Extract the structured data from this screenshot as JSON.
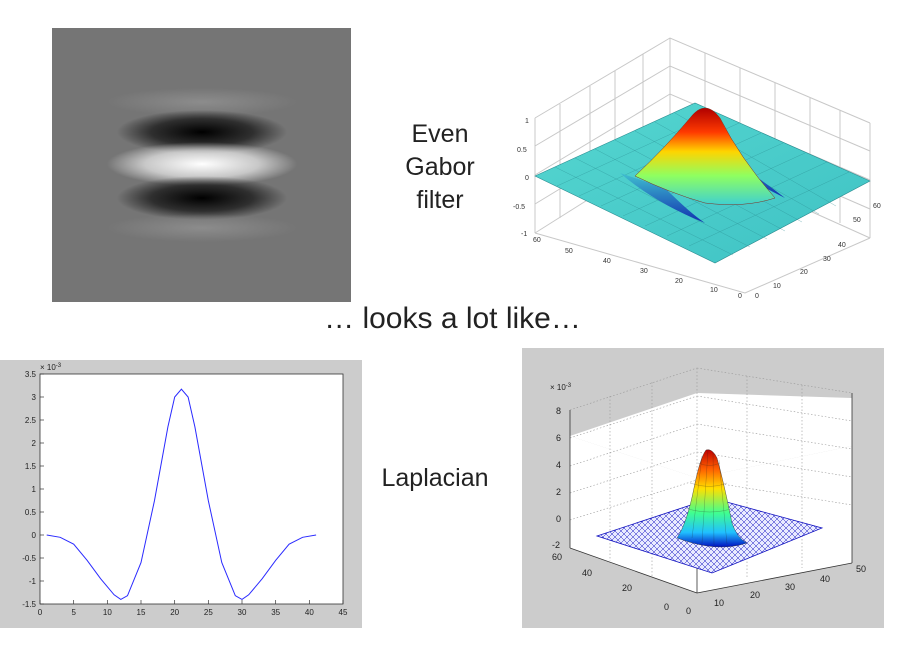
{
  "labels": {
    "gabor": [
      "Even",
      "Gabor",
      "filter"
    ],
    "caption": "… looks a lot like…",
    "laplacian": "Laplacian"
  },
  "chart_data": [
    {
      "type": "heatmap",
      "description_hidden": true,
      "colormap": "gray",
      "bands": [
        {
          "y": 0.26,
          "value": 0.55
        },
        {
          "y": 0.37,
          "value": 0.0
        },
        {
          "y": 0.5,
          "value": 1.0
        },
        {
          "y": 0.62,
          "value": 0.0
        },
        {
          "y": 0.73,
          "value": 0.55
        }
      ]
    },
    {
      "type": "surface",
      "x_ticks": [
        0,
        10,
        20,
        30,
        40,
        50,
        60
      ],
      "y_ticks": [
        0,
        10,
        20,
        30,
        40,
        50,
        60
      ],
      "z_ticks": [
        "-1",
        "-0.5",
        "0",
        "0.5",
        "1"
      ],
      "zlim": [
        -1,
        1
      ],
      "colormap": "jet"
    },
    {
      "type": "line",
      "exponent_label": "× 10",
      "exponent": "-3",
      "xlim": [
        0,
        45
      ],
      "ylim": [
        -1.5,
        3.5
      ],
      "x_ticks": [
        "0",
        "5",
        "10",
        "15",
        "20",
        "25",
        "30",
        "35",
        "40",
        "45"
      ],
      "y_ticks": [
        "-1.5",
        "-1",
        "-0.5",
        "0",
        "0.5",
        "1",
        "1.5",
        "2",
        "2.5",
        "3",
        "3.5"
      ],
      "x": [
        1,
        3,
        5,
        7,
        9,
        11,
        12,
        13,
        15,
        17,
        19,
        20,
        21,
        22,
        23,
        25,
        27,
        29,
        30,
        31,
        33,
        35,
        37,
        39,
        41
      ],
      "y": [
        0,
        -0.05,
        -0.2,
        -0.55,
        -0.95,
        -1.3,
        -1.4,
        -1.32,
        -0.6,
        0.75,
        2.35,
        3.0,
        3.17,
        3.0,
        2.35,
        0.75,
        -0.6,
        -1.32,
        -1.4,
        -1.3,
        -0.95,
        -0.55,
        -0.2,
        -0.05,
        0
      ]
    },
    {
      "type": "surface",
      "exponent_label": "× 10",
      "exponent": "-3",
      "z_ticks": [
        "-2",
        "0",
        "2",
        "4",
        "6",
        "8"
      ],
      "x_ticks": [
        "0",
        "10",
        "20",
        "30",
        "40",
        "50"
      ],
      "y_ticks": [
        "0",
        "20",
        "40",
        "60"
      ],
      "zlim": [
        -2,
        8
      ],
      "colormap": "jet-wire"
    }
  ]
}
